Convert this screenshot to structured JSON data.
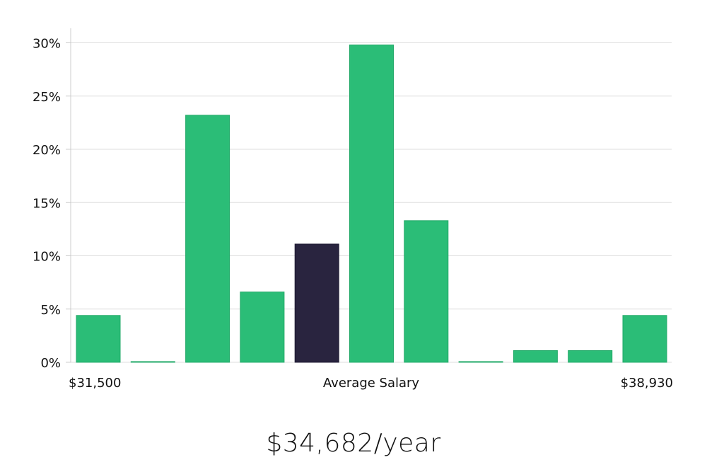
{
  "chart_data": {
    "type": "bar",
    "title": "",
    "x_labels": {
      "left": "$31,500",
      "center": "Average Salary",
      "right": "$38,930"
    },
    "y_ticks": [
      "0%",
      "5%",
      "10%",
      "15%",
      "20%",
      "25%",
      "30%"
    ],
    "ylim": [
      0,
      31.5
    ],
    "values": [
      4.4,
      0.05,
      23.2,
      6.6,
      11.1,
      29.8,
      13.3,
      0.05,
      1.1,
      1.1,
      4.4
    ],
    "highlight_index": 4,
    "grid": true
  },
  "colors": {
    "bar": "#2bbd77",
    "highlight": "#29243f",
    "grid": "#dddddd",
    "axis": "#cccccc"
  },
  "summary": {
    "average_salary": "$34,682/year"
  }
}
